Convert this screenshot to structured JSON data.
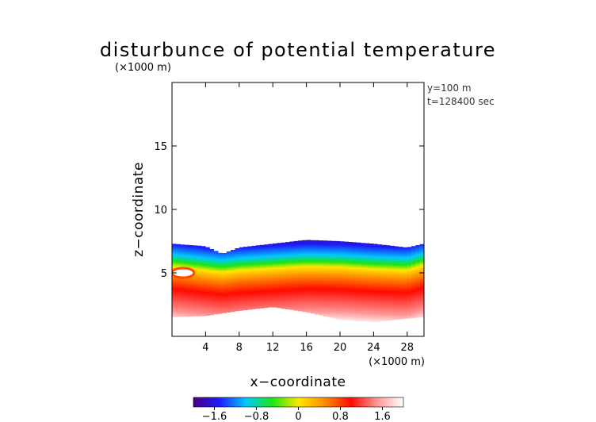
{
  "chart_data": {
    "type": "heatmap",
    "title": "disturbunce of potential temperature",
    "xlabel": "x−coordinate",
    "ylabel": "z−coordinate",
    "x_unit": "(×1000 m)",
    "y_unit": "(×1000 m)",
    "annotations": [
      "y=100 m",
      "t=128400 sec"
    ],
    "xlim": [
      0,
      30
    ],
    "ylim": [
      0,
      20
    ],
    "x_ticks": [
      4,
      8,
      12,
      16,
      20,
      24,
      28
    ],
    "y_ticks": [
      5,
      10,
      15
    ],
    "grid": false,
    "colorbar": {
      "range": [
        -2.0,
        2.0
      ],
      "ticks": [
        -1.6,
        -0.8,
        0,
        0.8,
        1.6
      ],
      "tick_labels": [
        "−1.6",
        "−0.8",
        "0",
        "0.8",
        "1.6"
      ],
      "colors": [
        "#4b0082",
        "#1c1cff",
        "#00c8ff",
        "#19e614",
        "#ffe600",
        "#ff8c00",
        "#ff0a00",
        "#ff9696",
        "#ffffff"
      ]
    },
    "field_description": {
      "top_of_field_z": [
        [
          0,
          7.3
        ],
        [
          2,
          7.2
        ],
        [
          4,
          7.1
        ],
        [
          6,
          6.5
        ],
        [
          8,
          7.0
        ],
        [
          12,
          7.3
        ],
        [
          16,
          7.6
        ],
        [
          20,
          7.5
        ],
        [
          24,
          7.3
        ],
        [
          28,
          7.0
        ],
        [
          30,
          7.3
        ]
      ],
      "bottom_of_field_z": [
        [
          0,
          1.5
        ],
        [
          4,
          1.6
        ],
        [
          8,
          2.0
        ],
        [
          12,
          2.3
        ],
        [
          16,
          1.9
        ],
        [
          20,
          1.3
        ],
        [
          24,
          1.1
        ],
        [
          28,
          1.4
        ],
        [
          30,
          1.5
        ]
      ],
      "cold_layer_z": [
        [
          0,
          6.8
        ],
        [
          4,
          6.2
        ],
        [
          6,
          5.7
        ],
        [
          8,
          5.8
        ],
        [
          12,
          6.1
        ],
        [
          16,
          6.4
        ],
        [
          20,
          6.5
        ],
        [
          24,
          6.3
        ],
        [
          28,
          6.0
        ],
        [
          30,
          6.6
        ]
      ],
      "warm_layer_z": [
        [
          0,
          3.6
        ],
        [
          4,
          3.6
        ],
        [
          8,
          4.0
        ],
        [
          12,
          4.0
        ],
        [
          16,
          4.0
        ],
        [
          20,
          3.8
        ],
        [
          24,
          3.7
        ],
        [
          28,
          3.8
        ],
        [
          30,
          4.0
        ]
      ]
    }
  }
}
